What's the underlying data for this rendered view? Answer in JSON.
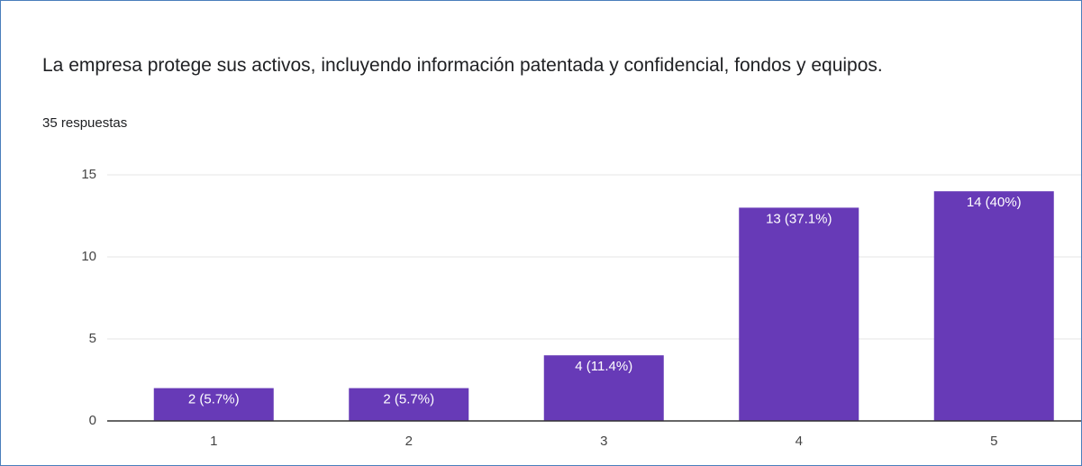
{
  "chart_data": {
    "type": "bar",
    "title": "La empresa protege sus activos, incluyendo información patentada y confidencial, fondos y equipos.",
    "subtitle": "35 respuestas",
    "categories": [
      "1",
      "2",
      "3",
      "4",
      "5"
    ],
    "values": [
      2,
      2,
      4,
      13,
      14
    ],
    "value_labels": [
      "2 (5.7%)",
      "2 (5.7%)",
      "4 (11.4%)",
      "13 (37.1%)",
      "14 (40%)"
    ],
    "color": "#673ab7",
    "ylim": [
      0,
      15
    ],
    "yticks": [
      0,
      5,
      10,
      15
    ],
    "grid": true
  }
}
